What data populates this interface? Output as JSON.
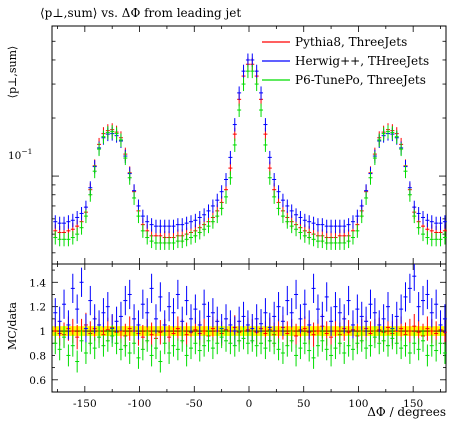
{
  "chart_data": {
    "type": "scatter",
    "title": "⟨p⊥,sum⟩ vs. ΔΦ from leading jet",
    "ylabel": "⟨p⊥,sum⟩",
    "xlabel": "ΔΦ / degrees",
    "ratio_ylabel": "MC/data",
    "legend_position": "top-right",
    "xlim": [
      -180,
      180
    ],
    "ylim": [
      0.035,
      0.6
    ],
    "yscale": "log",
    "ratio_ylim": [
      0.5,
      1.55
    ],
    "x_ticks": [
      -150,
      -100,
      -50,
      0,
      50,
      100,
      150
    ],
    "x_tick_labels": [
      "-150",
      "-100",
      "-50",
      "0",
      "50",
      "100",
      "150"
    ],
    "y_tick_value": 0.1,
    "y_tick_label": "10",
    "y_tick_exp": "−1",
    "ratio_ticks": [
      0.6,
      0.8,
      1.0,
      1.2,
      1.4
    ],
    "ratio_tick_labels": [
      "0.6",
      "0.8",
      "1",
      "1.2",
      "1.4"
    ],
    "ratio_band": [
      0.96,
      1.04
    ],
    "series": [
      {
        "name": "Pythia8, ThreeJets",
        "color": "#ff0000"
      },
      {
        "name": "Herwig++, THreeJets",
        "color": "#0000ff"
      },
      {
        "name": "P6-TunePo, ThreeJets",
        "color": "#00dd00"
      }
    ],
    "x": [
      -177,
      -173,
      -169,
      -165,
      -161,
      -157,
      -153,
      -149,
      -145,
      -141,
      -137,
      -133,
      -129,
      -125,
      -121,
      -117,
      -113,
      -109,
      -105,
      -101,
      -97,
      -93,
      -89,
      -85,
      -81,
      -77,
      -73,
      -69,
      -65,
      -61,
      -57,
      -53,
      -49,
      -45,
      -41,
      -37,
      -33,
      -29,
      -25,
      -21,
      -17,
      -13,
      -9,
      -5,
      -1,
      3,
      7,
      11,
      15,
      19,
      23,
      27,
      31,
      35,
      39,
      43,
      47,
      51,
      55,
      59,
      63,
      67,
      71,
      75,
      79,
      83,
      87,
      91,
      95,
      99,
      103,
      107,
      111,
      115,
      119,
      123,
      127,
      131,
      135,
      139,
      143,
      147,
      151,
      155,
      159,
      163,
      167,
      171,
      175,
      179
    ],
    "values": {
      "pythia8": [
        0.052,
        0.051,
        0.051,
        0.052,
        0.053,
        0.055,
        0.058,
        0.065,
        0.085,
        0.113,
        0.146,
        0.166,
        0.172,
        0.174,
        0.169,
        0.158,
        0.13,
        0.104,
        0.083,
        0.066,
        0.056,
        0.052,
        0.049,
        0.049,
        0.049,
        0.048,
        0.048,
        0.048,
        0.049,
        0.049,
        0.05,
        0.051,
        0.052,
        0.054,
        0.056,
        0.058,
        0.061,
        0.066,
        0.073,
        0.085,
        0.11,
        0.165,
        0.25,
        0.33,
        0.38,
        0.38,
        0.33,
        0.25,
        0.165,
        0.11,
        0.085,
        0.073,
        0.066,
        0.061,
        0.058,
        0.056,
        0.054,
        0.052,
        0.051,
        0.05,
        0.049,
        0.049,
        0.048,
        0.048,
        0.048,
        0.049,
        0.049,
        0.049,
        0.052,
        0.056,
        0.066,
        0.083,
        0.104,
        0.13,
        0.158,
        0.169,
        0.174,
        0.172,
        0.166,
        0.146,
        0.113,
        0.085,
        0.065,
        0.058,
        0.055,
        0.053,
        0.052,
        0.051,
        0.051,
        0.052
      ],
      "herwig": [
        0.058,
        0.057,
        0.057,
        0.058,
        0.059,
        0.061,
        0.064,
        0.069,
        0.087,
        0.112,
        0.14,
        0.158,
        0.165,
        0.166,
        0.162,
        0.152,
        0.127,
        0.103,
        0.084,
        0.07,
        0.062,
        0.058,
        0.056,
        0.055,
        0.055,
        0.055,
        0.055,
        0.055,
        0.056,
        0.056,
        0.057,
        0.058,
        0.059,
        0.061,
        0.063,
        0.066,
        0.07,
        0.075,
        0.083,
        0.096,
        0.125,
        0.185,
        0.27,
        0.35,
        0.4,
        0.4,
        0.35,
        0.27,
        0.185,
        0.125,
        0.096,
        0.083,
        0.075,
        0.07,
        0.066,
        0.063,
        0.061,
        0.059,
        0.058,
        0.057,
        0.056,
        0.056,
        0.055,
        0.055,
        0.055,
        0.055,
        0.055,
        0.056,
        0.058,
        0.062,
        0.07,
        0.084,
        0.103,
        0.127,
        0.152,
        0.162,
        0.166,
        0.165,
        0.158,
        0.14,
        0.112,
        0.087,
        0.069,
        0.064,
        0.061,
        0.059,
        0.058,
        0.057,
        0.057,
        0.058
      ],
      "p6tunepo": [
        0.048,
        0.047,
        0.047,
        0.047,
        0.048,
        0.05,
        0.054,
        0.062,
        0.08,
        0.106,
        0.138,
        0.16,
        0.168,
        0.17,
        0.166,
        0.154,
        0.124,
        0.098,
        0.077,
        0.062,
        0.052,
        0.048,
        0.046,
        0.045,
        0.045,
        0.045,
        0.045,
        0.045,
        0.046,
        0.046,
        0.047,
        0.048,
        0.049,
        0.051,
        0.053,
        0.055,
        0.058,
        0.062,
        0.068,
        0.078,
        0.098,
        0.145,
        0.22,
        0.3,
        0.35,
        0.35,
        0.3,
        0.22,
        0.145,
        0.098,
        0.078,
        0.068,
        0.062,
        0.058,
        0.055,
        0.053,
        0.051,
        0.049,
        0.048,
        0.047,
        0.046,
        0.046,
        0.045,
        0.045,
        0.045,
        0.045,
        0.045,
        0.046,
        0.048,
        0.052,
        0.062,
        0.077,
        0.098,
        0.124,
        0.154,
        0.166,
        0.17,
        0.168,
        0.16,
        0.138,
        0.106,
        0.08,
        0.062,
        0.054,
        0.05,
        0.048,
        0.047,
        0.047,
        0.047,
        0.048
      ]
    },
    "ratio": {
      "pythia8": [
        1.0,
        0.98,
        0.97,
        1.02,
        1.0,
        0.95,
        1.0,
        1.05,
        0.98,
        1.02,
        1.0,
        0.97,
        1.01,
        1.03,
        0.99,
        1.0,
        0.96,
        1.02,
        1.0,
        0.98,
        0.95,
        1.0,
        0.97,
        0.94,
        0.99,
        1.0,
        0.95,
        0.98,
        1.02,
        1.0,
        0.97,
        0.99,
        1.01,
        0.98,
        1.0,
        0.96,
        1.02,
        1.0,
        0.98,
        1.01,
        1.0,
        1.03,
        0.99,
        1.0,
        1.01,
        1.0,
        0.99,
        1.02,
        0.98,
        1.01,
        0.97,
        1.0,
        1.03,
        0.98,
        1.0,
        0.96,
        1.01,
        1.02,
        0.99,
        0.97,
        1.0,
        1.04,
        0.98,
        0.95,
        1.0,
        0.97,
        1.02,
        0.99,
        1.01,
        0.96,
        1.0,
        1.02,
        0.98,
        1.0,
        1.01,
        0.99,
        1.03,
        0.98,
        1.0,
        1.02,
        0.97,
        1.0,
        1.04,
        0.99,
        0.96,
        1.02,
        1.0,
        0.98,
        1.01,
        0.99
      ],
      "herwig": [
        1.15,
        1.08,
        1.22,
        1.05,
        1.35,
        1.18,
        1.4,
        1.02,
        1.25,
        1.1,
        1.05,
        1.15,
        1.2,
        1.02,
        1.08,
        1.12,
        1.25,
        1.3,
        1.1,
        1.05,
        1.22,
        1.15,
        1.35,
        1.1,
        1.28,
        1.05,
        1.2,
        1.15,
        1.3,
        1.08,
        1.25,
        1.1,
        1.18,
        1.05,
        1.22,
        1.12,
        1.15,
        1.08,
        1.02,
        1.1,
        1.05,
        1.0,
        1.08,
        1.12,
        1.05,
        1.02,
        1.1,
        1.06,
        1.15,
        1.03,
        1.12,
        1.2,
        1.08,
        1.25,
        1.15,
        1.3,
        1.1,
        1.22,
        1.05,
        1.35,
        1.18,
        1.12,
        1.28,
        1.08,
        1.2,
        1.15,
        1.1,
        1.25,
        1.05,
        1.18,
        1.12,
        1.08,
        1.22,
        1.15,
        1.05,
        1.1,
        1.2,
        1.02,
        1.12,
        1.18,
        1.28,
        1.35,
        1.45,
        1.2,
        1.25,
        1.3,
        1.15,
        1.22,
        1.05,
        1.1
      ],
      "p6tunepo": [
        0.9,
        0.85,
        0.95,
        0.8,
        0.88,
        0.75,
        0.92,
        0.82,
        0.9,
        0.86,
        0.95,
        0.88,
        0.92,
        0.96,
        0.9,
        0.85,
        0.88,
        0.82,
        0.9,
        0.78,
        0.85,
        0.92,
        0.8,
        0.86,
        0.75,
        0.9,
        0.82,
        0.88,
        0.85,
        0.92,
        0.8,
        0.86,
        0.9,
        0.84,
        0.88,
        0.92,
        0.86,
        0.9,
        0.95,
        0.92,
        0.9,
        0.88,
        0.92,
        0.94,
        0.9,
        0.92,
        0.88,
        0.9,
        0.86,
        0.92,
        0.9,
        0.85,
        0.82,
        0.88,
        0.92,
        0.8,
        0.86,
        0.9,
        0.84,
        0.78,
        0.88,
        0.92,
        0.85,
        0.8,
        0.86,
        0.9,
        0.82,
        0.88,
        0.85,
        0.9,
        0.92,
        0.86,
        0.88,
        0.95,
        0.9,
        0.92,
        0.88,
        0.94,
        0.9,
        0.86,
        0.88,
        0.82,
        0.9,
        0.85,
        0.92,
        0.8,
        0.88,
        0.84,
        0.9,
        0.82
      ]
    },
    "ratio_err": [
      0.1,
      0.12,
      0.09
    ],
    "main_err_frac": 0.08
  }
}
